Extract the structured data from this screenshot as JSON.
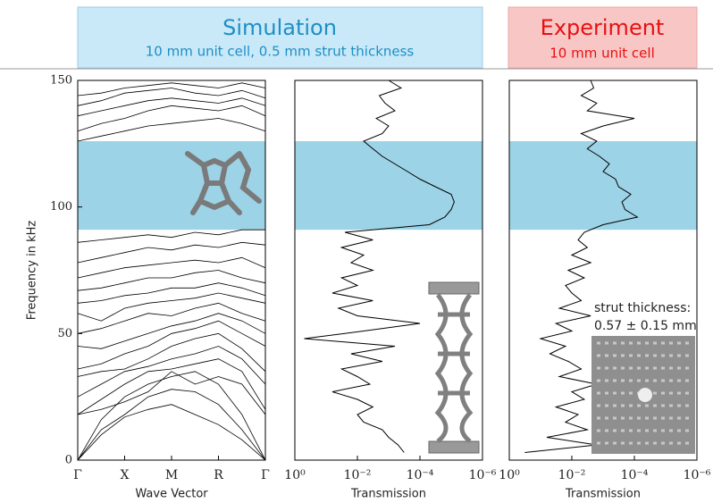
{
  "header": {
    "simulation_title": "Simulation",
    "simulation_subtitle": "10 mm unit cell, 0.5 mm strut thickness",
    "experiment_title": "Experiment",
    "experiment_subtitle": "10 mm unit cell"
  },
  "chart_data": [
    {
      "type": "line",
      "ylabel": "Frequency in kHz",
      "xlabel": "Wave Vector",
      "color": "#000000",
      "shade_color": "#9dd3e6",
      "shaded_range": [
        91,
        126
      ],
      "x": [
        0,
        0.5,
        1,
        1.5,
        2,
        2.5,
        3,
        3.5,
        4
      ],
      "xlim": [
        0,
        4
      ],
      "xticks": [
        {
          "value": 0,
          "label": "Γ"
        },
        {
          "value": 1,
          "label": "X"
        },
        {
          "value": 2,
          "label": "M"
        },
        {
          "value": 3,
          "label": "R"
        },
        {
          "value": 4,
          "label": "Γ"
        }
      ],
      "ylim": [
        0,
        150
      ],
      "yticks": [
        0,
        50,
        100,
        150
      ],
      "series": [
        {
          "values": [
            0,
            10,
            17,
            20,
            22,
            18,
            14,
            8,
            0
          ]
        },
        {
          "values": [
            0,
            12,
            18,
            25,
            28,
            27,
            22,
            12,
            0
          ]
        },
        {
          "values": [
            0,
            16,
            25,
            30,
            33,
            35,
            30,
            18,
            0
          ]
        },
        {
          "values": [
            18,
            20,
            23,
            27,
            35,
            30,
            33,
            30,
            18
          ]
        },
        {
          "values": [
            18,
            24,
            30,
            35,
            36,
            38,
            40,
            35,
            20
          ]
        },
        {
          "values": [
            25,
            30,
            35,
            37,
            40,
            42,
            45,
            40,
            30
          ]
        },
        {
          "values": [
            33,
            35,
            36,
            40,
            45,
            48,
            50,
            44,
            35
          ]
        },
        {
          "values": [
            36,
            38,
            42,
            45,
            50,
            52,
            55,
            50,
            45
          ]
        },
        {
          "values": [
            45,
            44,
            47,
            50,
            53,
            55,
            58,
            55,
            50
          ]
        },
        {
          "values": [
            50,
            52,
            55,
            58,
            57,
            60,
            62,
            58,
            55
          ]
        },
        {
          "values": [
            58,
            55,
            60,
            62,
            63,
            64,
            66,
            64,
            62
          ]
        },
        {
          "values": [
            62,
            63,
            65,
            66,
            68,
            68,
            70,
            68,
            65
          ]
        },
        {
          "values": [
            67,
            68,
            70,
            72,
            72,
            74,
            75,
            72,
            70
          ]
        },
        {
          "values": [
            72,
            74,
            76,
            77,
            78,
            79,
            78,
            80,
            76
          ]
        },
        {
          "values": [
            78,
            80,
            82,
            84,
            83,
            85,
            84,
            86,
            85
          ]
        },
        {
          "values": [
            86,
            87,
            88,
            89,
            88,
            90,
            89,
            91,
            91
          ]
        },
        {
          "values": [
            126,
            128,
            130,
            132,
            133,
            134,
            135,
            133,
            130
          ]
        },
        {
          "values": [
            130,
            133,
            135,
            138,
            140,
            139,
            138,
            140,
            136
          ]
        },
        {
          "values": [
            136,
            138,
            140,
            142,
            143,
            142,
            141,
            143,
            140
          ]
        },
        {
          "values": [
            140,
            142,
            145,
            146,
            147,
            145,
            144,
            146,
            143
          ]
        },
        {
          "values": [
            144,
            145,
            147,
            148,
            149,
            148,
            147,
            149,
            147
          ]
        }
      ]
    },
    {
      "type": "spectrum",
      "xlabel": "Transmission",
      "color": "#000000",
      "shade_color": "#9dd3e6",
      "log_x": true,
      "shaded_range": [
        91,
        126
      ],
      "xlim": [
        1,
        1e-06
      ],
      "xticks": [
        {
          "value": 1,
          "label": "10⁰"
        },
        {
          "value": 0.01,
          "label": "10⁻²"
        },
        {
          "value": 0.0001,
          "label": "10⁻⁴"
        },
        {
          "value": 1e-06,
          "label": "10⁻⁶"
        }
      ],
      "ylim": [
        0,
        150
      ],
      "y": [
        3,
        6,
        9,
        12,
        15,
        18,
        21,
        24,
        27,
        30,
        33,
        36,
        39,
        42,
        45,
        48,
        51,
        54,
        57,
        60,
        63,
        66,
        69,
        72,
        75,
        78,
        81,
        84,
        87,
        90,
        93,
        96,
        99,
        102,
        105,
        108,
        111,
        114,
        117,
        120,
        123,
        126,
        129,
        132,
        135,
        138,
        141,
        144,
        147,
        150
      ],
      "values": [
        0.00032,
        0.0005,
        0.001,
        0.0016,
        0.0063,
        0.01,
        0.0032,
        0.01,
        0.063,
        0.004,
        0.01,
        0.032,
        0.0016,
        0.016,
        0.00063,
        0.5,
        0.0063,
        0.0001,
        0.01,
        0.04,
        0.0032,
        0.063,
        0.01,
        0.032,
        0.0032,
        0.016,
        0.0063,
        0.032,
        0.0032,
        0.025,
        5e-05,
        1.6e-05,
        1e-05,
        8e-06,
        1e-05,
        3.2e-05,
        0.0001,
        0.00025,
        0.00063,
        0.0016,
        0.0032,
        0.0063,
        0.0016,
        0.001,
        0.0025,
        0.00063,
        0.0013,
        0.002,
        0.0004,
        0.001
      ]
    },
    {
      "type": "spectrum",
      "xlabel": "Transmission",
      "color": "#000000",
      "shade_color": "#9dd3e6",
      "log_x": true,
      "shaded_range": [
        91,
        126
      ],
      "annotations": [
        "strut thickness:",
        "0.57 ± 0.15 mm"
      ],
      "xlim": [
        1,
        1e-06
      ],
      "xticks": [
        {
          "value": 1,
          "label": "10⁰"
        },
        {
          "value": 0.01,
          "label": "10⁻²"
        },
        {
          "value": 0.0001,
          "label": "10⁻⁴"
        },
        {
          "value": 1e-06,
          "label": "10⁻⁶"
        }
      ],
      "ylim": [
        0,
        150
      ],
      "y": [
        3,
        6,
        9,
        12,
        15,
        18,
        21,
        24,
        27,
        30,
        33,
        36,
        39,
        42,
        45,
        48,
        51,
        54,
        57,
        60,
        63,
        66,
        69,
        72,
        75,
        78,
        81,
        84,
        87,
        90,
        93,
        96,
        99,
        102,
        105,
        108,
        111,
        114,
        117,
        120,
        123,
        126,
        129,
        132,
        135,
        138,
        141,
        144,
        147,
        150
      ],
      "values": [
        0.32,
        0.0016,
        0.063,
        0.0032,
        0.016,
        0.0063,
        0.032,
        0.004,
        0.01,
        0.0016,
        0.025,
        0.005,
        0.013,
        0.05,
        0.016,
        0.1,
        0.01,
        0.032,
        0.0025,
        0.025,
        0.005,
        0.01,
        0.016,
        0.004,
        0.013,
        0.0025,
        0.01,
        0.0032,
        0.0063,
        0.004,
        0.001,
        8e-05,
        0.0002,
        0.00025,
        0.00013,
        0.00032,
        0.0004,
        0.001,
        0.00063,
        0.0013,
        0.0032,
        0.0016,
        0.005,
        0.001,
        0.0001,
        0.0032,
        0.0016,
        0.005,
        0.002,
        0.0025
      ]
    }
  ]
}
